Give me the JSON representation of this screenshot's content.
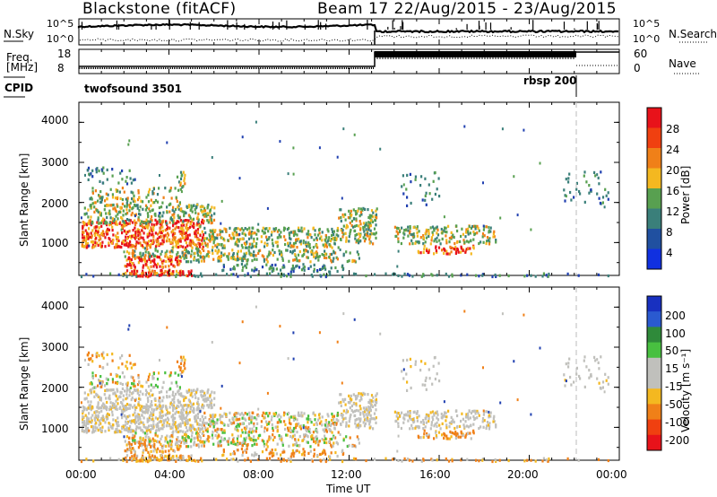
{
  "header": {
    "title": "Blackstone (fitACF)",
    "subtitle": "Beam 17 22/Aug/2015 - 23/Aug/2015"
  },
  "top_panels": {
    "nsky_label": "N.Sky",
    "nsearch_label": "N.Search",
    "sky_ticks": [
      "10^5",
      "10^0"
    ],
    "search_ticks": [
      "10^5",
      "10^0"
    ],
    "freq_label_1": "Freq.",
    "freq_label_2": "[MHz]",
    "freq_ticks": [
      "18",
      "8"
    ],
    "nave_label": "Nave",
    "nave_ticks": [
      "60",
      "0"
    ],
    "cpid_label": "CPID",
    "cpid_1": "twofsound 3501",
    "cpid_2": "rbsp 200"
  },
  "colors": {
    "red": "#e8121a",
    "orange": "#f08018",
    "yellow": "#f4b820",
    "green": "#58a050",
    "teal": "#3a7f7a",
    "blue": "#2040b0",
    "grey": "#c0c0bc",
    "lgreen": "#48c040"
  },
  "chart_data": [
    {
      "type": "heatmap",
      "name": "Power",
      "ylabel": "Slant Range [km]",
      "colorbar_label": "Power [dB]",
      "colorbar_ticks": [
        "28",
        "24",
        "20",
        "16",
        "12",
        "8",
        "4"
      ],
      "y_ticks": [
        "4000",
        "3000",
        "2000",
        "1000"
      ],
      "ylim": [
        180,
        4500
      ]
    },
    {
      "type": "heatmap",
      "name": "Velocity",
      "ylabel": "Slant Range [km]",
      "colorbar_label": "Velocity [m s⁻¹]",
      "colorbar_ticks": [
        "200",
        "100",
        "50",
        "15",
        "-15",
        "-50",
        "-100",
        "-200"
      ],
      "y_ticks": [
        "4000",
        "3000",
        "2000",
        "1000"
      ],
      "ylim": [
        180,
        4500
      ]
    }
  ],
  "x_axis": {
    "label": "Time UT",
    "ticks": [
      "00:00",
      "04:00",
      "08:00",
      "12:00",
      "16:00",
      "20:00",
      "00:00"
    ]
  }
}
